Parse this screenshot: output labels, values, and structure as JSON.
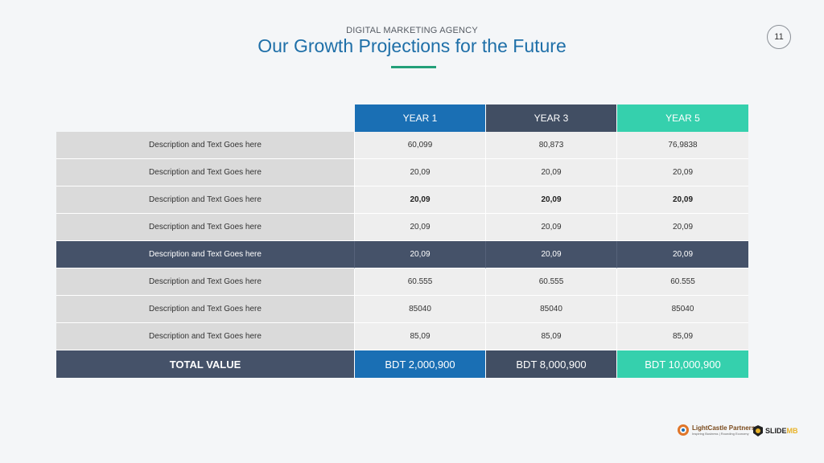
{
  "header": {
    "eyebrow": "DIGITAL MARKETING AGENCY",
    "title": "Our Growth Projections for the Future",
    "page_number": "11"
  },
  "table": {
    "columns": [
      "YEAR 1",
      "YEAR 3",
      "YEAR 5"
    ],
    "rows": [
      {
        "label": "Description and Text Goes here",
        "values": [
          "60,099",
          "80,873",
          "76,9838"
        ]
      },
      {
        "label": "Description and Text Goes here",
        "values": [
          "20,09",
          "20,09",
          "20,09"
        ]
      },
      {
        "label": "Description and Text Goes here",
        "values": [
          "20,09",
          "20,09",
          "20,09"
        ]
      },
      {
        "label": "Description and Text Goes here",
        "values": [
          "20,09",
          "20,09",
          "20,09"
        ]
      },
      {
        "label": "Description and Text Goes here",
        "values": [
          "20,09",
          "20,09",
          "20,09"
        ]
      },
      {
        "label": "Description and Text Goes here",
        "values": [
          "60.555",
          "60.555",
          "60.555"
        ]
      },
      {
        "label": "Description and Text Goes here",
        "values": [
          "85040",
          "85040",
          "85040"
        ]
      },
      {
        "label": "Description and Text Goes here",
        "values": [
          "85,09",
          "85,09",
          "85,09"
        ]
      }
    ],
    "total": {
      "label": "TOTAL VALUE",
      "values": [
        "BDT 2,000,900",
        "BDT 8,000,900",
        "BDT 10,000,900"
      ]
    }
  },
  "footer": {
    "lightcastle_name": "LightCastle Partners",
    "lightcastle_tagline": "Inspiring Business | Rounding Economy",
    "slidemb_prefix": "SLIDE",
    "slidemb_suffix": "MB"
  },
  "colors": {
    "year1": "#1a6fb4",
    "year3": "#414e63",
    "year5": "#35d0ad",
    "title": "#1e6fa8",
    "accent_underline": "#23a079"
  }
}
